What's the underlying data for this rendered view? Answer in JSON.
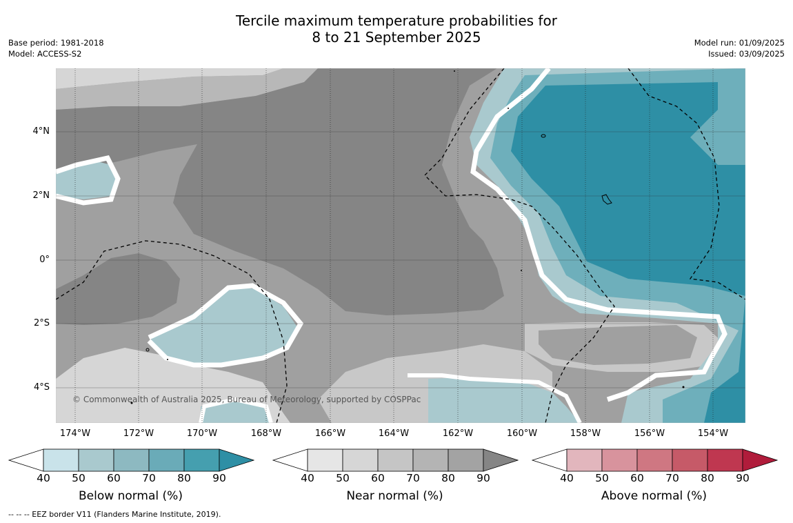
{
  "header": {
    "title_line1": "Tercile maximum temperature probabilities for",
    "title_line2": "8 to 21 September 2025",
    "base_period": "Base period: 1981-2018",
    "model": "Model: ACCESS-S2",
    "model_run": "Model run: 01/09/2025",
    "issued": "Issued: 03/09/2025"
  },
  "map": {
    "credit": "© Commonwealth of Australia 2025, Bureau of Meteorology, supported by COSPPac",
    "lat_labels": [
      "4°N",
      "2°N",
      "0°",
      "2°S",
      "4°S"
    ],
    "lon_labels": [
      "174°W",
      "172°W",
      "170°W",
      "168°W",
      "166°W",
      "164°W",
      "162°W",
      "160°W",
      "158°W",
      "156°W",
      "154°W"
    ],
    "colors": {
      "near_90": "#858585",
      "near_80": "#a0a0a0",
      "near_70": "#b8b8b8",
      "near_60": "#c8c8c8",
      "near_50": "#d6d6d6",
      "below_50": "#a9c9ce",
      "below_60": "#8cbcc4",
      "below_70": "#6eafbb",
      "below_80": "#4fa0b1",
      "below_90": "#2e8fa5"
    }
  },
  "legends": [
    {
      "title": "Below normal (%)",
      "ticks": [
        "40",
        "50",
        "60",
        "70",
        "80",
        "90"
      ],
      "colors": [
        "#c9e3ea",
        "#a9c9ce",
        "#8db9c1",
        "#6aabb8",
        "#459faf",
        "#2e8fa5"
      ]
    },
    {
      "title": "Near normal (%)",
      "ticks": [
        "40",
        "50",
        "60",
        "70",
        "80",
        "90"
      ],
      "colors": [
        "#e6e6e6",
        "#d6d6d6",
        "#c5c5c5",
        "#b4b4b4",
        "#a3a3a3",
        "#858585"
      ]
    },
    {
      "title": "Above normal (%)",
      "ticks": [
        "40",
        "50",
        "60",
        "70",
        "80",
        "90"
      ],
      "colors": [
        "#e2b6bd",
        "#d8939d",
        "#cf7782",
        "#c65a68",
        "#bf3750",
        "#b01c3b"
      ]
    }
  ],
  "footnote": "--  --  -- EEZ border V11 (Flanders Marine Institute, 2019)."
}
